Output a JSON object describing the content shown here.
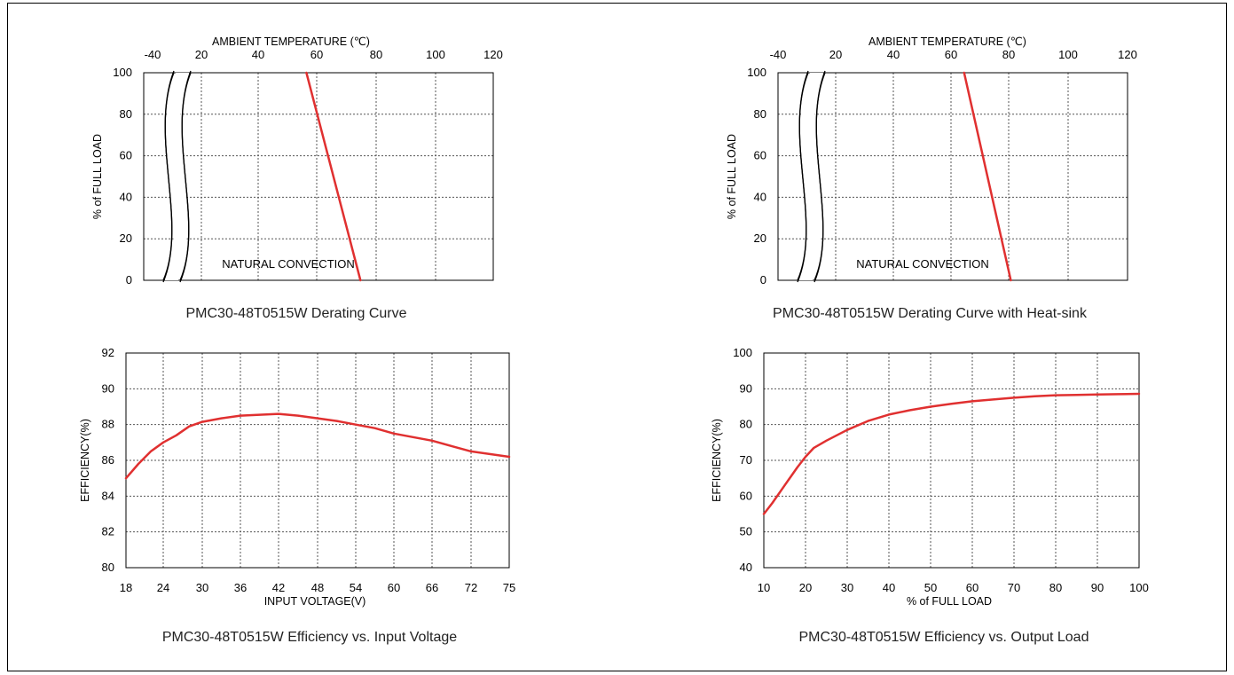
{
  "chart_data": [
    {
      "type": "line",
      "caption": "PMC30-48T0515W Derating Curve",
      "xlabel": "AMBIENT TEMPERATURE (℃)",
      "ylabel": "% of FULL LOAD",
      "x_ticks": [
        "-40",
        "20",
        "40",
        "60",
        "80",
        "100",
        "120"
      ],
      "y_ticks": [
        "0",
        "20",
        "40",
        "60",
        "80",
        "100"
      ],
      "xlim": [
        0,
        120
      ],
      "ylim": [
        0,
        100
      ],
      "axis_break": "between -40 and 20",
      "x_axis_position": "top",
      "grid": true,
      "annotation": "NATURAL CONVECTION",
      "series": [
        {
          "color": "#e03030",
          "x": [
            56,
            74.5
          ],
          "y": [
            100,
            0
          ]
        }
      ]
    },
    {
      "type": "line",
      "caption": "PMC30-48T0515W Derating Curve with Heat-sink",
      "xlabel": "AMBIENT TEMPERATURE (℃)",
      "ylabel": "% of FULL LOAD",
      "x_ticks": [
        "-40",
        "20",
        "40",
        "60",
        "80",
        "100",
        "120"
      ],
      "y_ticks": [
        "0",
        "20",
        "40",
        "60",
        "80",
        "100"
      ],
      "xlim": [
        0,
        120
      ],
      "ylim": [
        0,
        100
      ],
      "axis_break": "between -40 and 20",
      "x_axis_position": "top",
      "grid": true,
      "annotation": "NATURAL CONVECTION",
      "series": [
        {
          "color": "#e03030",
          "x": [
            64,
            80
          ],
          "y": [
            100,
            0
          ]
        }
      ]
    },
    {
      "type": "line",
      "caption": "PMC30-48T0515W Efficiency vs. Input Voltage",
      "xlabel": "INPUT VOLTAGE(V)",
      "ylabel": "EFFICIENCY(%)",
      "x_ticks": [
        "18",
        "24",
        "30",
        "36",
        "42",
        "48",
        "54",
        "60",
        "66",
        "72",
        "75"
      ],
      "y_ticks": [
        "80",
        "82",
        "84",
        "86",
        "88",
        "90",
        "92"
      ],
      "ylim": [
        80,
        92
      ],
      "x_axis_position": "bottom",
      "grid": true,
      "series": [
        {
          "color": "#e03030",
          "x": [
            18,
            20,
            22,
            24,
            26,
            28,
            30,
            33,
            36,
            39,
            42,
            45,
            48,
            51,
            54,
            57,
            60,
            63,
            66,
            69,
            72,
            75
          ],
          "y": [
            85.0,
            85.8,
            86.5,
            87.0,
            87.4,
            87.9,
            88.15,
            88.35,
            88.5,
            88.55,
            88.6,
            88.5,
            88.35,
            88.2,
            88.0,
            87.8,
            87.5,
            87.3,
            87.1,
            86.8,
            86.5,
            86.2
          ]
        }
      ]
    },
    {
      "type": "line",
      "caption": "PMC30-48T0515W Efficiency vs. Output Load",
      "xlabel": "% of FULL LOAD",
      "ylabel": "EFFICIENCY(%)",
      "x_ticks": [
        "10",
        "20",
        "30",
        "40",
        "50",
        "60",
        "70",
        "80",
        "90",
        "100"
      ],
      "y_ticks": [
        "40",
        "50",
        "60",
        "70",
        "80",
        "90",
        "100"
      ],
      "xlim": [
        10,
        100
      ],
      "ylim": [
        40,
        100
      ],
      "x_axis_position": "bottom",
      "grid": true,
      "series": [
        {
          "color": "#e03030",
          "x": [
            10,
            12,
            15,
            18,
            20,
            22,
            25,
            30,
            35,
            40,
            45,
            50,
            55,
            60,
            65,
            70,
            75,
            80,
            85,
            90,
            95,
            100
          ],
          "y": [
            55,
            58,
            63,
            68,
            71,
            73.5,
            75.5,
            78.5,
            81,
            82.8,
            84,
            85,
            85.8,
            86.5,
            87,
            87.5,
            87.9,
            88.2,
            88.3,
            88.4,
            88.5,
            88.6
          ]
        }
      ]
    }
  ]
}
